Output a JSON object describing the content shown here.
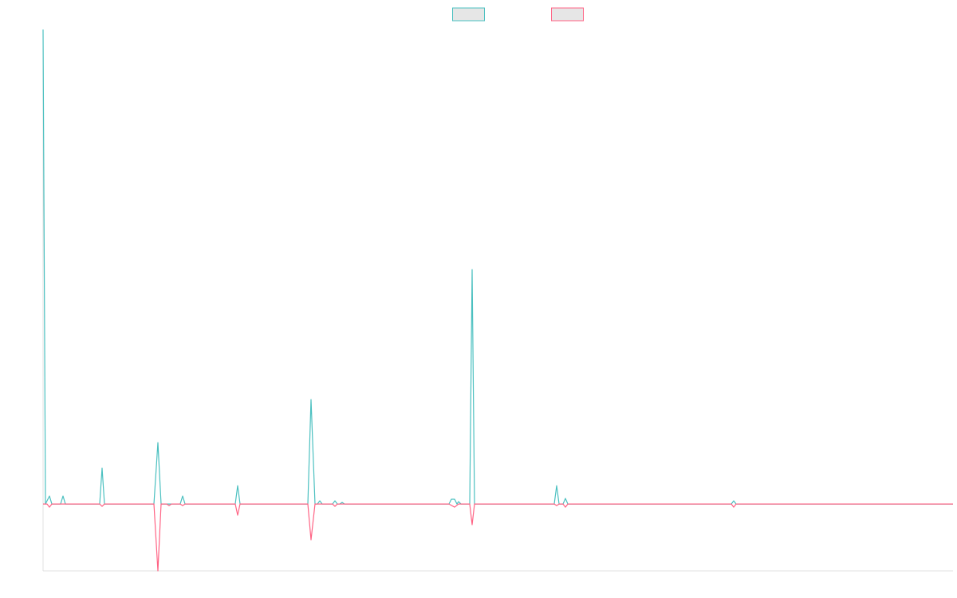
{
  "chart_data": {
    "type": "line",
    "xlim": [
      0,
      1141
    ],
    "ylim": [
      -14.1,
      100
    ],
    "grid": false,
    "legend": "top",
    "series": [
      {
        "color": "#4bc0c0",
        "x": [
          0,
          3,
          8,
          11,
          22,
          25,
          28,
          71,
          74,
          77,
          139,
          144,
          148,
          172,
          175,
          178,
          241,
          244,
          247,
          332,
          336,
          341,
          344,
          347,
          350,
          363,
          366,
          369,
          372,
          375,
          378,
          509,
          512,
          516,
          519,
          521,
          524,
          535,
          538,
          541,
          641,
          644,
          647,
          652,
          655,
          658,
          863,
          866,
          869,
          1141
        ],
        "values": [
          100,
          0,
          1.68,
          0,
          0,
          1.68,
          0,
          0,
          7.56,
          0,
          0,
          12.94,
          0,
          0,
          1.68,
          0,
          0,
          3.87,
          0,
          0,
          22.02,
          0,
          0,
          0.67,
          0,
          0,
          0.67,
          0,
          0,
          0.34,
          0,
          0,
          1.01,
          1.01,
          0,
          0.5,
          0,
          0,
          49.41,
          0,
          0,
          3.87,
          0,
          0,
          1.18,
          0,
          0,
          0.67,
          0,
          0
        ]
      },
      {
        "color": "#ff6384",
        "x": [
          0,
          5,
          8,
          11,
          71,
          74,
          77,
          139,
          144,
          148,
          155,
          158,
          161,
          172,
          175,
          178,
          241,
          244,
          247,
          332,
          336,
          341,
          363,
          366,
          369,
          509,
          516,
          521,
          535,
          538,
          541,
          641,
          644,
          647,
          652,
          655,
          658,
          863,
          866,
          869,
          1141
        ],
        "values": [
          0,
          0,
          -0.67,
          0,
          0,
          -0.5,
          0,
          0,
          -14.1,
          0,
          0,
          -0.34,
          0,
          0,
          -0.34,
          0,
          0,
          -2.35,
          0,
          0,
          -7.56,
          0,
          0,
          -0.5,
          0,
          0,
          -0.67,
          0,
          0,
          -4.37,
          0,
          0,
          -0.34,
          0,
          0,
          -0.67,
          0,
          0,
          -0.67,
          0,
          0
        ]
      }
    ]
  }
}
